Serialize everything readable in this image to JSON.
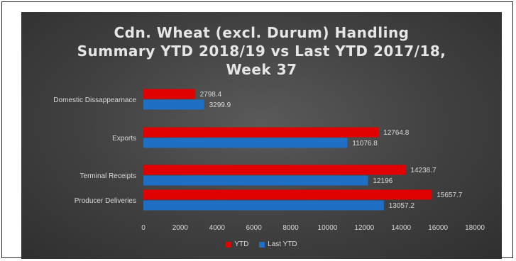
{
  "chart_data": {
    "type": "bar",
    "orientation": "horizontal",
    "title_lines": [
      "Cdn. Wheat (excl. Durum) Handling",
      "Summary YTD 2018/19 vs Last YTD 2017/18,",
      "Week 37"
    ],
    "categories": [
      "Domestic Dissappearnace",
      "Exports",
      "Terminal Receipts",
      "Producer Deliveries"
    ],
    "series": [
      {
        "name": "YTD",
        "color": "#e00000",
        "values": [
          2798.4,
          12764.8,
          14238.7,
          15657.7
        ],
        "labels": [
          "2798.4",
          "12764.8",
          "14238.7",
          "15657.7"
        ]
      },
      {
        "name": "Last YTD",
        "color": "#1f6fc5",
        "values": [
          3299.9,
          11076.8,
          12196,
          13057.2
        ],
        "labels": [
          "3299.9",
          "11076.8",
          "12196",
          "13057.2"
        ]
      }
    ],
    "xlim": [
      0,
      18000
    ],
    "xticks": [
      "0",
      "2000",
      "4000",
      "6000",
      "8000",
      "10000",
      "12000",
      "14000",
      "16000",
      "18000"
    ],
    "grid": false,
    "legend_position": "bottom",
    "background": "#404040"
  }
}
